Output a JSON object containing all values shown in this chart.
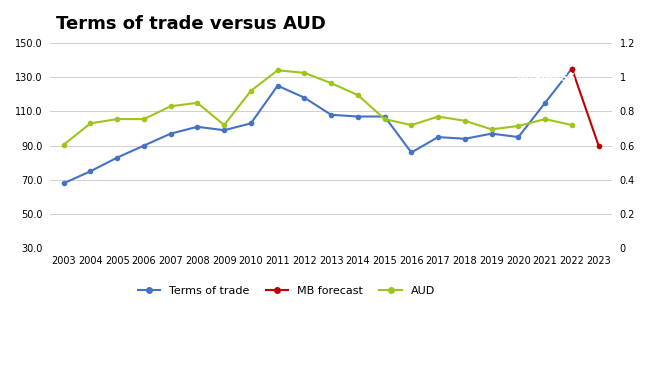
{
  "title": "Terms of trade versus AUD",
  "title_fontsize": 13,
  "background_color": "#ffffff",
  "plot_bg_color": "#ffffff",
  "years": [
    2003,
    2004,
    2005,
    2006,
    2007,
    2008,
    2009,
    2010,
    2011,
    2012,
    2013,
    2014,
    2015,
    2016,
    2017,
    2018,
    2019,
    2020,
    2021,
    2022,
    2023
  ],
  "tot": [
    68,
    75,
    83,
    90,
    97,
    101,
    99,
    103,
    125,
    118,
    108,
    107,
    107,
    86,
    95,
    94,
    97,
    95,
    115,
    135,
    null
  ],
  "tot_color": "#4472c4",
  "forecast_years": [
    2022,
    2023
  ],
  "forecast_values": [
    135,
    90
  ],
  "forecast_color": "#c00000",
  "aud": [
    0.605,
    0.73,
    0.755,
    0.755,
    0.83,
    0.85,
    0.72,
    0.92,
    1.04,
    1.025,
    0.965,
    0.895,
    0.755,
    0.72,
    0.77,
    0.745,
    0.695,
    0.715,
    0.755,
    0.72,
    null
  ],
  "aud_color": "#9dc51b",
  "ylim_left": [
    30,
    150
  ],
  "ylim_right": [
    0,
    1.2
  ],
  "yticks_left": [
    30.0,
    50.0,
    70.0,
    90.0,
    110.0,
    130.0,
    150.0
  ],
  "yticks_right": [
    0,
    0.2,
    0.4,
    0.6,
    0.8,
    1.0,
    1.2
  ],
  "grid_color": "#d0d0d0",
  "macro_business_logo_color": "#cc0000",
  "legend_labels": [
    "Terms of trade",
    "MB forecast",
    "AUD"
  ]
}
